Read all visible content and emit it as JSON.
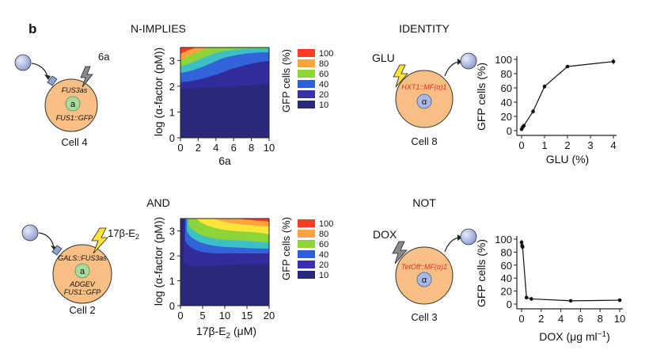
{
  "panel_letter": "b",
  "colors": {
    "cell_fill": "#f7bf83",
    "cell_stroke": "#222222",
    "inner_green": "#a8dba0",
    "inner_blue": "#a9b9e6",
    "sphere": "#a8b4e0",
    "receptor": "#8fa3cf",
    "bolt_yellow": "#ffe43a",
    "bolt_gray": "#888888",
    "red_text": "#e0312b"
  },
  "icons": [
    "ligand-sphere-icon",
    "receptor-icon",
    "lightning-bolt-icon",
    "arrow-icon"
  ],
  "panels": {
    "nimplies": {
      "title": "N-IMPLIES",
      "cell_label": "Cell 4",
      "input_label": "6a",
      "inner_label": "a",
      "gene_top": "FUS3as",
      "gene_bottom": "FUS1::GFP"
    },
    "and": {
      "title": "AND",
      "cell_label": "Cell 2",
      "input_label": "17β-E",
      "input_sub": "2",
      "inner_label": "a",
      "gene_top": "GALS::FUS3as",
      "gene_mid": "ADGEV",
      "gene_bottom": "FUS1::GFP"
    },
    "identity": {
      "title": "IDENTITY",
      "cell_label": "Cell 8",
      "input_label": "GLU",
      "inner_label": "α",
      "gene_top": "HXT1::MF(α)1"
    },
    "not": {
      "title": "NOT",
      "cell_label": "Cell 3",
      "input_label": "DOX",
      "inner_label": "α",
      "gene_top": "TetOff::MF(α)1"
    }
  },
  "chart_data": [
    {
      "id": "nimplies-heatmap",
      "type": "heatmap",
      "xlabel": "6a",
      "ylabel": "log (α-factor (pM))",
      "xlim": [
        0,
        10
      ],
      "ylim": [
        0,
        3.5
      ],
      "xticks": [
        "0",
        "2",
        "4",
        "6",
        "8",
        "10"
      ],
      "yticks": [
        "0",
        "1",
        "2",
        "3"
      ],
      "colorbar_title": "GFP cells (%)",
      "colorbar": [
        {
          "label": "100",
          "color": "#ff3b22"
        },
        {
          "label": "80",
          "color": "#ffa43a"
        },
        {
          "label": "60",
          "color": "#8cd43a"
        },
        {
          "label": "40",
          "color": "#2f5fd8"
        },
        {
          "label": "20",
          "color": "#3a2fae"
        },
        {
          "label": "10",
          "color": "#2a2878"
        }
      ]
    },
    {
      "id": "and-heatmap",
      "type": "heatmap",
      "xlabel": "17β-E",
      "xlabel_sub": "2",
      "xlabel_unit": " (μM)",
      "ylabel": "log (α-factor (pM))",
      "xlim": [
        0,
        20
      ],
      "ylim": [
        0,
        3.5
      ],
      "xticks": [
        "0",
        "5",
        "10",
        "15",
        "20"
      ],
      "yticks": [
        "0",
        "1",
        "2",
        "3"
      ],
      "colorbar_title": "GFP cells (%)",
      "colorbar": [
        {
          "label": "100",
          "color": "#ff3b22"
        },
        {
          "label": "80",
          "color": "#ffa43a"
        },
        {
          "label": "60",
          "color": "#8cd43a"
        },
        {
          "label": "40",
          "color": "#2f5fd8"
        },
        {
          "label": "20",
          "color": "#3a2fae"
        },
        {
          "label": "10",
          "color": "#2a2878"
        }
      ]
    },
    {
      "id": "identity-line",
      "type": "line",
      "xlabel": "GLU (%)",
      "ylabel": "GFP cells (%)",
      "xlim": [
        0,
        4
      ],
      "ylim": [
        0,
        100
      ],
      "xticks": [
        "0",
        "1",
        "2",
        "3",
        "4"
      ],
      "yticks": [
        "0",
        "20",
        "40",
        "60",
        "80",
        "100"
      ],
      "x": [
        0,
        0.05,
        0.1,
        0.5,
        1,
        2,
        4
      ],
      "y": [
        2,
        5,
        7,
        27,
        62,
        90,
        97
      ],
      "err": [
        1,
        1,
        2,
        3,
        3,
        2,
        4
      ]
    },
    {
      "id": "not-line",
      "type": "line",
      "xlabel": "DOX (μg ml",
      "xlabel_sup": "−1",
      "xlabel_end": ")",
      "ylabel": "GFP cells (%)",
      "xlim": [
        0,
        10
      ],
      "ylim": [
        0,
        100
      ],
      "xticks": [
        "0",
        "2",
        "4",
        "6",
        "8",
        "10"
      ],
      "yticks": [
        "0",
        "20",
        "40",
        "60",
        "80",
        "100"
      ],
      "x": [
        0,
        0.05,
        0.1,
        0.5,
        1,
        5,
        10
      ],
      "y": [
        95,
        90,
        88,
        10,
        8,
        5,
        6
      ],
      "err": [
        4,
        4,
        4,
        3,
        2,
        1,
        1
      ]
    }
  ]
}
